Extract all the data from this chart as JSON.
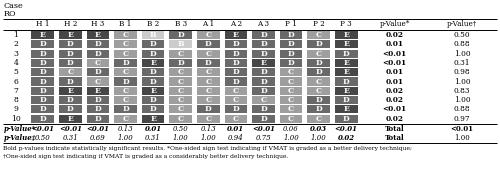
{
  "title_line1": "Case",
  "title_line2": "RO",
  "columns": [
    "H 1",
    "H 2",
    "H 3",
    "B 1",
    "B 2",
    "B 3",
    "A 1",
    "A 2",
    "A 3",
    "P 1",
    "P 2",
    "P 3",
    "p-Value*",
    "p-Value†"
  ],
  "rows": [
    "1",
    "2",
    "3",
    "4",
    "5",
    "6",
    "7",
    "8",
    "9",
    "10",
    "p-Value*",
    "p-Value‡"
  ],
  "data": [
    [
      "E",
      "E",
      "E",
      "C",
      "B",
      "D",
      "C",
      "E",
      "D",
      "D",
      "C",
      "E",
      "0.02",
      "0.50"
    ],
    [
      "D",
      "D",
      "D",
      "C",
      "D",
      "B",
      "D",
      "D",
      "D",
      "D",
      "D",
      "E",
      "0.01",
      "0.88"
    ],
    [
      "D",
      "D",
      "D",
      "C",
      "D",
      "C",
      "C",
      "D",
      "D",
      "D",
      "C",
      "D",
      "<0.01",
      "1.00"
    ],
    [
      "D",
      "D",
      "C",
      "D",
      "E",
      "D",
      "D",
      "D",
      "E",
      "D",
      "D",
      "E",
      "<0.01",
      "0.31"
    ],
    [
      "D",
      "C",
      "D",
      "C",
      "D",
      "C",
      "C",
      "D",
      "D",
      "C",
      "D",
      "E",
      "0.01",
      "0.98"
    ],
    [
      "D",
      "D",
      "C",
      "D",
      "D",
      "C",
      "C",
      "D",
      "D",
      "C",
      "C",
      "D",
      "0.01",
      "1.00"
    ],
    [
      "D",
      "E",
      "E",
      "C",
      "E",
      "C",
      "C",
      "C",
      "D",
      "C",
      "C",
      "E",
      "0.02",
      "0.83"
    ],
    [
      "D",
      "D",
      "D",
      "C",
      "D",
      "C",
      "C",
      "C",
      "C",
      "C",
      "D",
      "D",
      "0.02",
      "1.00"
    ],
    [
      "D",
      "D",
      "D",
      "D",
      "D",
      "C",
      "D",
      "D",
      "D",
      "C",
      "D",
      "E",
      "<0.01",
      "0.88"
    ],
    [
      "D",
      "E",
      "D",
      "C",
      "E",
      "C",
      "C",
      "C",
      "D",
      "C",
      "C",
      "D",
      "0.02",
      "0.97"
    ],
    [
      "<0.01",
      "<0.01",
      "<0.01",
      "0.13",
      "0.01",
      "0.50",
      "0.13",
      "0.01",
      "<0.01",
      "0.06",
      "0.03",
      "<0.01",
      "Total",
      "<0.01"
    ],
    [
      "0.50",
      "0.31",
      "0.69",
      "1.00",
      "0.31",
      "1.00",
      "1.00",
      "0.94",
      "0.75",
      "1.00",
      "1.00",
      "0.02",
      "Total",
      "1.00"
    ]
  ],
  "grade_colors": {
    "E": "#474747",
    "D": "#696969",
    "C": "#9e9e9e",
    "B": "#cccccc"
  },
  "footnote1": "Bold p-values indicate statistically significant results. *One-sided sign test indicating if VMAT is graded as a better delivery technique;",
  "footnote2": "†One-sided sign test indicating if VMAT is graded as a considerably better delivery technique.",
  "pval_star_bold": [
    "0.02",
    "0.01",
    "<0.01",
    "<0.01",
    "0.01",
    "0.01",
    "0.02",
    "0.02",
    "<0.01",
    "0.02"
  ],
  "col_star_bold_indices": [
    0,
    1,
    2,
    4,
    7,
    8,
    10,
    11
  ],
  "col_dagger_bold_indices": [
    11
  ],
  "total_star_bold": true,
  "total_dagger_bold": false
}
